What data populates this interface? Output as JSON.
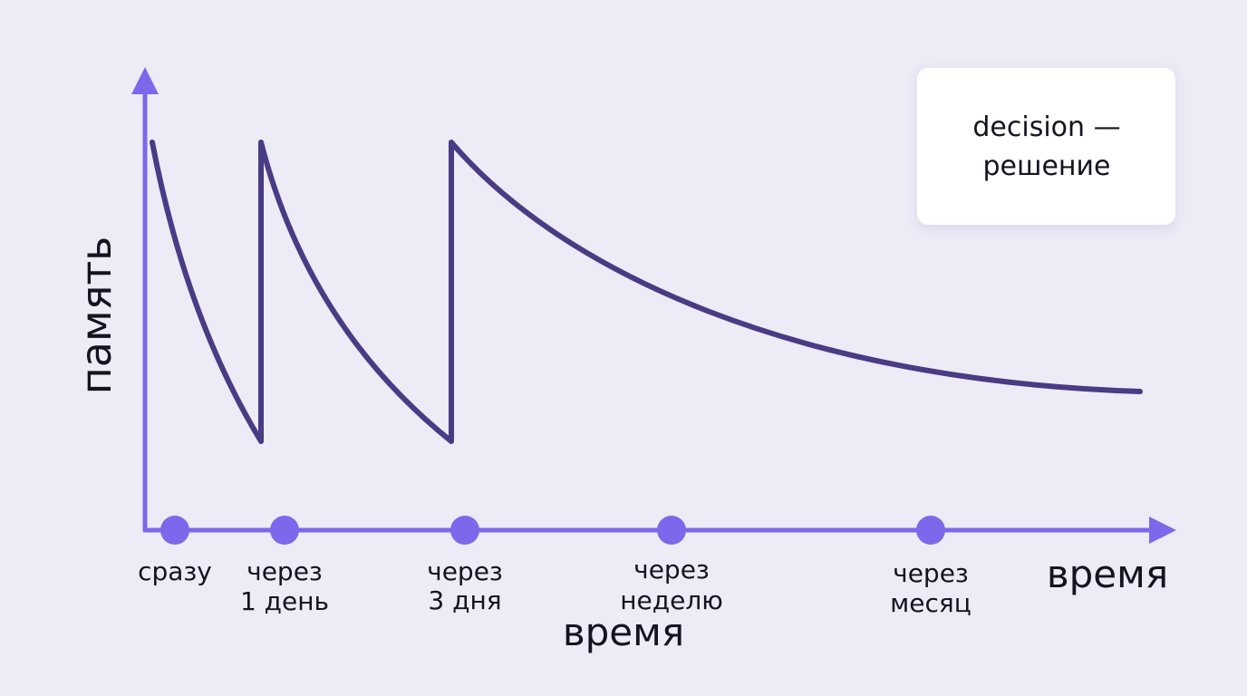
{
  "axes": {
    "y_label": "память",
    "x_label": "время",
    "x_caption": "время"
  },
  "timeline": [
    {
      "lines": [
        "сразу"
      ]
    },
    {
      "lines": [
        "через",
        "1 день"
      ]
    },
    {
      "lines": [
        "через",
        "3 дня"
      ]
    },
    {
      "lines": [
        "через",
        "неделю"
      ]
    },
    {
      "lines": [
        "через",
        "месяц"
      ]
    }
  ],
  "card": {
    "lines": [
      "decision —",
      "решение"
    ]
  }
}
